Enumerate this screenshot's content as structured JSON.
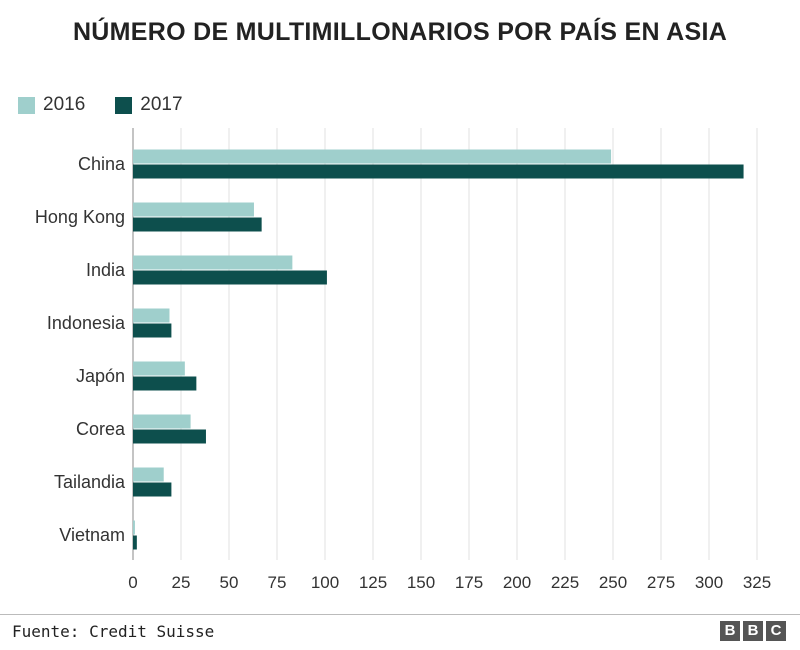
{
  "header": {
    "title": "NÚMERO DE MULTIMILLONARIOS POR PAÍS EN ASIA"
  },
  "legend": [
    {
      "label": "2016",
      "color": "#9fcfcc"
    },
    {
      "label": "2017",
      "color": "#0d4f4d"
    }
  ],
  "footer": {
    "source": "Fuente: Credit Suisse",
    "logo_letters": [
      "B",
      "B",
      "C"
    ]
  },
  "chart_data": {
    "type": "bar",
    "orientation": "horizontal",
    "title": "NÚMERO DE MULTIMILLONARIOS POR PAÍS EN ASIA",
    "categories": [
      "China",
      "Hong Kong",
      "India",
      "Indonesia",
      "Japón",
      "Corea",
      "Tailandia",
      "Vietnam"
    ],
    "series": [
      {
        "name": "2016",
        "color": "#9fcfcc",
        "values": [
          249,
          63,
          83,
          19,
          27,
          30,
          16,
          1
        ]
      },
      {
        "name": "2017",
        "color": "#0d4f4d",
        "values": [
          318,
          67,
          101,
          20,
          33,
          38,
          20,
          2
        ]
      }
    ],
    "xlim": [
      0,
      325
    ],
    "xticks": [
      0,
      25,
      50,
      75,
      100,
      125,
      150,
      175,
      200,
      225,
      250,
      275,
      300,
      325
    ],
    "grid": "vertical",
    "legend_position": "top-left"
  }
}
